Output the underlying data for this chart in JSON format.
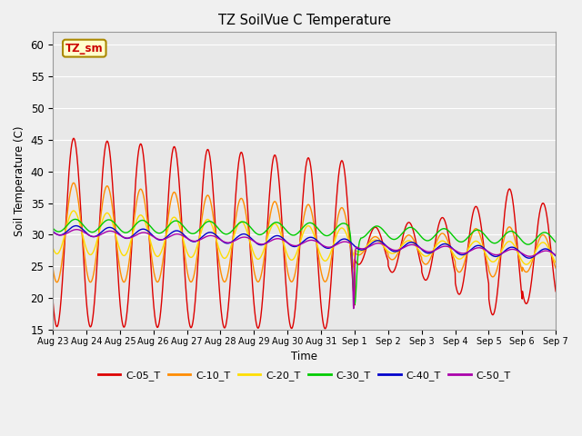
{
  "title": "TZ SoilVue C Temperature",
  "ylabel": "Soil Temperature (C)",
  "xlabel": "Time",
  "ylim": [
    15,
    62
  ],
  "yticks": [
    15,
    20,
    25,
    30,
    35,
    40,
    45,
    50,
    55,
    60
  ],
  "fig_bg": "#f0f0f0",
  "plot_bg": "#e8e8e8",
  "legend_label": "TZ_sm",
  "series_colors": {
    "C-05_T": "#dd0000",
    "C-10_T": "#ff8c00",
    "C-20_T": "#ffdd00",
    "C-30_T": "#00cc00",
    "C-40_T": "#0000cc",
    "C-50_T": "#aa00aa"
  },
  "tick_labels": [
    "Aug 23",
    "Aug 24",
    "Aug 25",
    "Aug 26",
    "Aug 27",
    "Aug 28",
    "Aug 29",
    "Aug 30",
    "Aug 31",
    "Sep 1",
    "Sep 2",
    "Sep 3",
    "Sep 4",
    "Sep 5",
    "Sep 6",
    "Sep 7"
  ],
  "n_days": 15
}
